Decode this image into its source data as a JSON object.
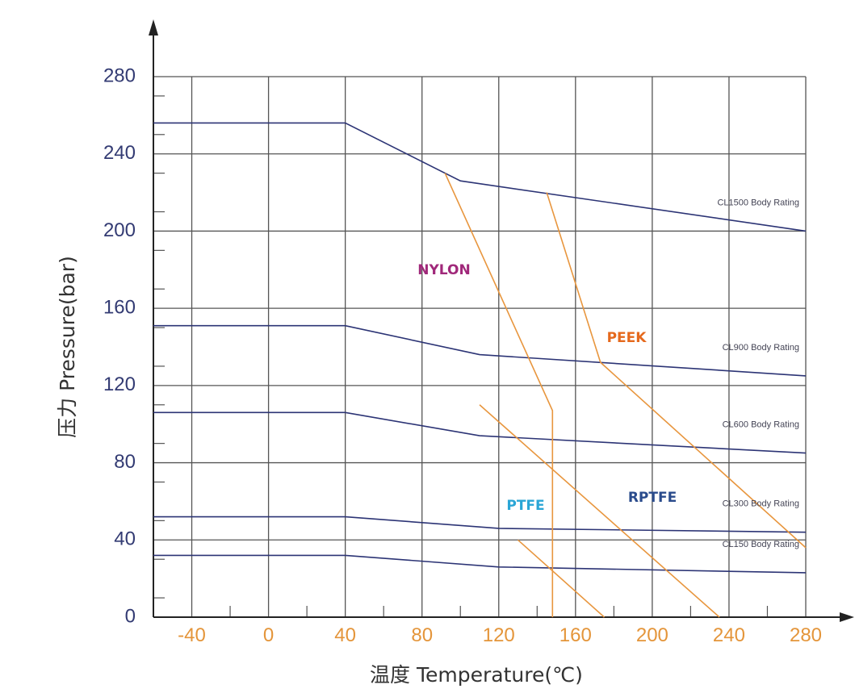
{
  "chart_data": {
    "type": "line",
    "ylabel": "压力 Pressure(bar)",
    "xlabel": "温度 Temperature(℃)",
    "xlim": [
      -60,
      280
    ],
    "ylim": [
      0,
      280
    ],
    "x_ticks": [
      "-40",
      "0",
      "40",
      "80",
      "120",
      "160",
      "200",
      "240",
      "280"
    ],
    "x_tick_values": [
      -40,
      0,
      40,
      80,
      120,
      160,
      200,
      240,
      280
    ],
    "y_ticks": [
      "0",
      "40",
      "80",
      "120",
      "160",
      "200",
      "240",
      "280"
    ],
    "y_tick_values": [
      0,
      40,
      80,
      120,
      160,
      200,
      240,
      280
    ],
    "grid": true,
    "colors": {
      "body_rating": "#2c3475",
      "material_limit": "#e8963e",
      "grid": "#555555",
      "y_tick": "#333b73",
      "x_tick": "#e4953a"
    },
    "body_ratings": [
      {
        "name": "CL1500 Body Rating",
        "points": [
          [
            -60,
            256
          ],
          [
            40,
            256
          ],
          [
            100,
            226
          ],
          [
            280,
            200
          ]
        ]
      },
      {
        "name": "CL900 Body Rating",
        "points": [
          [
            -60,
            151
          ],
          [
            40,
            151
          ],
          [
            110,
            136
          ],
          [
            280,
            125
          ]
        ]
      },
      {
        "name": "CL600 Body Rating",
        "points": [
          [
            -60,
            106
          ],
          [
            40,
            106
          ],
          [
            110,
            94
          ],
          [
            280,
            85
          ]
        ]
      },
      {
        "name": "CL300 Body Rating",
        "points": [
          [
            -60,
            52
          ],
          [
            40,
            52
          ],
          [
            120,
            46
          ],
          [
            280,
            44
          ]
        ]
      },
      {
        "name": "CL150 Body Rating",
        "points": [
          [
            -60,
            32
          ],
          [
            40,
            32
          ],
          [
            120,
            26
          ],
          [
            280,
            23
          ]
        ]
      }
    ],
    "materials": [
      {
        "name": "NYLON",
        "color": "#a0287a",
        "points": [
          [
            92,
            230
          ],
          [
            148,
            107
          ],
          [
            148,
            0
          ]
        ]
      },
      {
        "name": "PEEK",
        "color": "#e5691d",
        "points": [
          [
            145,
            220
          ],
          [
            173,
            132
          ],
          [
            280,
            36
          ]
        ]
      },
      {
        "name": "PTFE",
        "color": "#2aa6d6",
        "points": [
          [
            130,
            40
          ],
          [
            175,
            0
          ]
        ]
      },
      {
        "name": "RPTFE",
        "color": "#2a4b8c",
        "points": [
          [
            110,
            110
          ],
          [
            235,
            0
          ]
        ]
      }
    ]
  }
}
